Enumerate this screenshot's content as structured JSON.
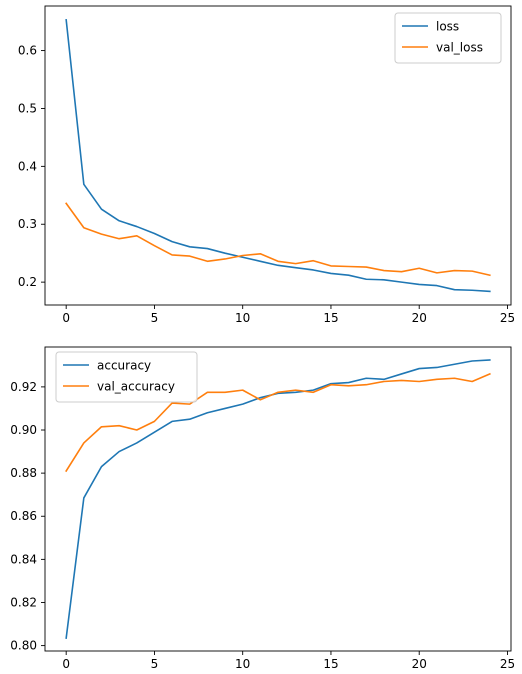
{
  "chart_data": [
    {
      "type": "line",
      "title": "",
      "xlabel": "",
      "ylabel": "",
      "xlim": [
        -1.2,
        25.2
      ],
      "ylim": [
        0.1605,
        0.677
      ],
      "xticks": [
        "0",
        "5",
        "10",
        "15",
        "20",
        "25"
      ],
      "yticks": [
        "0.2",
        "0.3",
        "0.4",
        "0.5",
        "0.6"
      ],
      "grid": false,
      "legend_position": "top-right",
      "x": [
        0,
        1,
        2,
        3,
        4,
        5,
        6,
        7,
        8,
        9,
        10,
        11,
        12,
        13,
        14,
        15,
        16,
        17,
        18,
        19,
        20,
        21,
        22,
        23,
        24
      ],
      "series": [
        {
          "name": "loss",
          "color": "#1f77b4",
          "values": [
            0.653,
            0.369,
            0.326,
            0.306,
            0.296,
            0.284,
            0.27,
            0.261,
            0.258,
            0.25,
            0.243,
            0.236,
            0.229,
            0.225,
            0.221,
            0.215,
            0.212,
            0.205,
            0.204,
            0.2,
            0.196,
            0.194,
            0.187,
            0.186,
            0.184
          ]
        },
        {
          "name": "val_loss",
          "color": "#ff7f0e",
          "values": [
            0.336,
            0.294,
            0.283,
            0.275,
            0.28,
            0.263,
            0.247,
            0.245,
            0.236,
            0.24,
            0.246,
            0.249,
            0.236,
            0.232,
            0.237,
            0.228,
            0.227,
            0.226,
            0.22,
            0.218,
            0.224,
            0.216,
            0.22,
            0.219,
            0.212
          ]
        }
      ]
    },
    {
      "type": "line",
      "title": "",
      "xlabel": "",
      "ylabel": "",
      "xlim": [
        -1.2,
        25.2
      ],
      "ylim": [
        0.7975,
        0.9385
      ],
      "xticks": [
        "0",
        "5",
        "10",
        "15",
        "20",
        "25"
      ],
      "yticks": [
        "0.80",
        "0.82",
        "0.84",
        "0.86",
        "0.88",
        "0.90",
        "0.92"
      ],
      "grid": false,
      "legend_position": "top-left",
      "x": [
        0,
        1,
        2,
        3,
        4,
        5,
        6,
        7,
        8,
        9,
        10,
        11,
        12,
        13,
        14,
        15,
        16,
        17,
        18,
        19,
        20,
        21,
        22,
        23,
        24
      ],
      "series": [
        {
          "name": "accuracy",
          "color": "#1f77b4",
          "values": [
            0.8035,
            0.8685,
            0.883,
            0.89,
            0.894,
            0.899,
            0.904,
            0.905,
            0.908,
            0.91,
            0.912,
            0.915,
            0.917,
            0.9175,
            0.9185,
            0.9215,
            0.922,
            0.924,
            0.9235,
            0.926,
            0.9285,
            0.929,
            0.9305,
            0.932,
            0.9325
          ]
        },
        {
          "name": "val_accuracy",
          "color": "#ff7f0e",
          "values": [
            0.881,
            0.894,
            0.9015,
            0.902,
            0.9,
            0.904,
            0.9125,
            0.912,
            0.9175,
            0.9175,
            0.9185,
            0.914,
            0.9175,
            0.9185,
            0.9175,
            0.921,
            0.9205,
            0.921,
            0.9225,
            0.923,
            0.9225,
            0.9235,
            0.924,
            0.9225,
            0.926
          ]
        }
      ]
    }
  ]
}
